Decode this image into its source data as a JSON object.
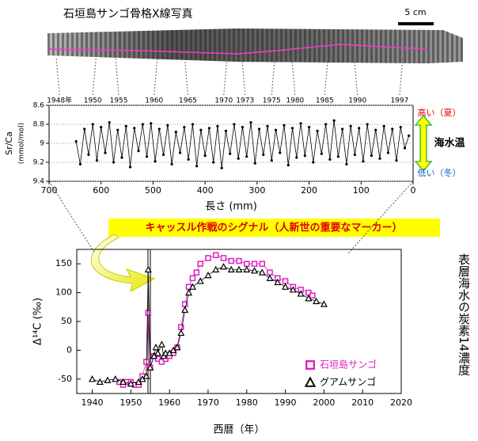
{
  "header": {
    "xray_title": "石垣島サンゴ骨格X線写真",
    "scale_bar": "5 cm"
  },
  "banner": "キャッスル作戦のシグナル（人新世の重要なマーカー）",
  "chart_data": [
    {
      "type": "line",
      "xlabel": "長さ (mm)",
      "ylabel": "Sr/Ca",
      "ylabel2": "(mmol/mol)",
      "color": "#000000",
      "xlim": [
        700,
        0
      ],
      "xticks": [
        700,
        600,
        500,
        400,
        300,
        200,
        100,
        0
      ],
      "ylim": [
        9.4,
        8.6
      ],
      "yticks": [
        8.6,
        8.8,
        9.0,
        9.2,
        9.4
      ],
      "grid": true,
      "x": [
        648,
        640,
        632,
        624,
        616,
        608,
        600,
        592,
        584,
        576,
        568,
        560,
        552,
        544,
        536,
        528,
        520,
        512,
        504,
        496,
        488,
        480,
        472,
        464,
        456,
        448,
        440,
        432,
        424,
        416,
        408,
        400,
        392,
        384,
        376,
        368,
        360,
        352,
        344,
        336,
        328,
        320,
        312,
        304,
        296,
        288,
        280,
        272,
        264,
        256,
        248,
        240,
        232,
        224,
        216,
        208,
        200,
        192,
        184,
        176,
        168,
        160,
        152,
        144,
        136,
        128,
        120,
        112,
        104,
        96,
        88,
        80,
        72,
        64,
        56,
        48,
        40,
        32,
        24,
        16,
        8
      ],
      "values": [
        8.98,
        9.22,
        8.85,
        9.12,
        8.8,
        9.18,
        8.83,
        9.1,
        8.78,
        9.2,
        8.86,
        9.15,
        8.82,
        9.25,
        8.84,
        9.08,
        8.8,
        9.14,
        8.79,
        9.19,
        8.85,
        9.12,
        8.81,
        9.22,
        8.88,
        9.1,
        8.83,
        9.17,
        8.8,
        9.24,
        8.86,
        9.13,
        8.84,
        9.2,
        8.82,
        9.26,
        8.87,
        9.11,
        8.8,
        9.16,
        8.83,
        9.14,
        8.78,
        9.21,
        8.85,
        9.12,
        8.82,
        9.18,
        8.86,
        9.1,
        8.81,
        9.23,
        8.84,
        9.15,
        8.79,
        9.13,
        8.83,
        9.2,
        8.87,
        9.11,
        8.8,
        9.17,
        8.76,
        9.14,
        8.85,
        9.22,
        8.82,
        9.12,
        8.84,
        9.19,
        8.8,
        9.13,
        8.86,
        9.16,
        8.82,
        9.1,
        8.85,
        9.18,
        8.83,
        9.05,
        8.92
      ],
      "annotations": [
        {
          "text": "1948年",
          "x": 680
        },
        {
          "text": "1950",
          "x": 616
        },
        {
          "text": "1955",
          "x": 566
        },
        {
          "text": "1960",
          "x": 498
        },
        {
          "text": "1965",
          "x": 433
        },
        {
          "text": "1970",
          "x": 364
        },
        {
          "text": "1973",
          "x": 323
        },
        {
          "text": "1975",
          "x": 272
        },
        {
          "text": "1980",
          "x": 227
        },
        {
          "text": "1985",
          "x": 170
        },
        {
          "text": "1990",
          "x": 107
        },
        {
          "text": "1997",
          "x": 26
        }
      ],
      "side": {
        "high": "高い（夏）",
        "label": "海水温",
        "low": "低い（冬）"
      }
    },
    {
      "type": "line",
      "xlabel": "西暦（年）",
      "ylabel": "Δ¹⁴C (‰)",
      "side_title": "表層海水の炭素14濃度",
      "xlim": [
        1936,
        2020
      ],
      "xticks": [
        1940,
        1950,
        1960,
        1970,
        1980,
        1990,
        2000,
        2010,
        2020
      ],
      "ylim": [
        -75,
        175
      ],
      "yticks": [
        -50,
        0,
        50,
        100,
        150
      ],
      "legend": "lower right",
      "series": [
        {
          "name": "石垣島サンゴ",
          "color": "#e020c0",
          "marker": "square",
          "x": [
            1947,
            1948,
            1949,
            1950,
            1951,
            1952,
            1953,
            1954,
            1954.5,
            1955,
            1956,
            1957,
            1958,
            1959,
            1960,
            1961,
            1962,
            1963,
            1964,
            1965,
            1966,
            1967,
            1968,
            1970,
            1972,
            1974,
            1976,
            1978,
            1980,
            1982,
            1984,
            1986,
            1988,
            1990,
            1992,
            1994,
            1996,
            1997
          ],
          "values": [
            -55,
            -60,
            -55,
            -55,
            -60,
            -60,
            -45,
            -20,
            65,
            -30,
            -10,
            -15,
            -20,
            -15,
            -10,
            -5,
            5,
            40,
            80,
            110,
            125,
            135,
            150,
            160,
            165,
            160,
            155,
            155,
            150,
            150,
            150,
            135,
            125,
            120,
            110,
            105,
            100,
            95
          ]
        },
        {
          "name": "グアムサンゴ",
          "color": "#000000",
          "marker": "triangle",
          "x": [
            1940,
            1942,
            1944,
            1946,
            1948,
            1950,
            1952,
            1953,
            1954,
            1954.5,
            1955,
            1956,
            1956.5,
            1957,
            1958,
            1958.5,
            1959,
            1960,
            1961,
            1962,
            1963,
            1964,
            1965,
            1966,
            1968,
            1970,
            1972,
            1974,
            1976,
            1978,
            1980,
            1982,
            1984,
            1986,
            1988,
            1990,
            1992,
            1994,
            1996,
            1998,
            2000
          ],
          "values": [
            -50,
            -55,
            -52,
            -50,
            -55,
            -58,
            -55,
            -50,
            -45,
            140,
            -30,
            -10,
            5,
            -5,
            10,
            -10,
            -5,
            -5,
            0,
            5,
            30,
            70,
            100,
            110,
            120,
            130,
            140,
            145,
            140,
            140,
            140,
            138,
            135,
            125,
            118,
            110,
            105,
            98,
            90,
            85,
            80
          ]
        }
      ]
    }
  ]
}
